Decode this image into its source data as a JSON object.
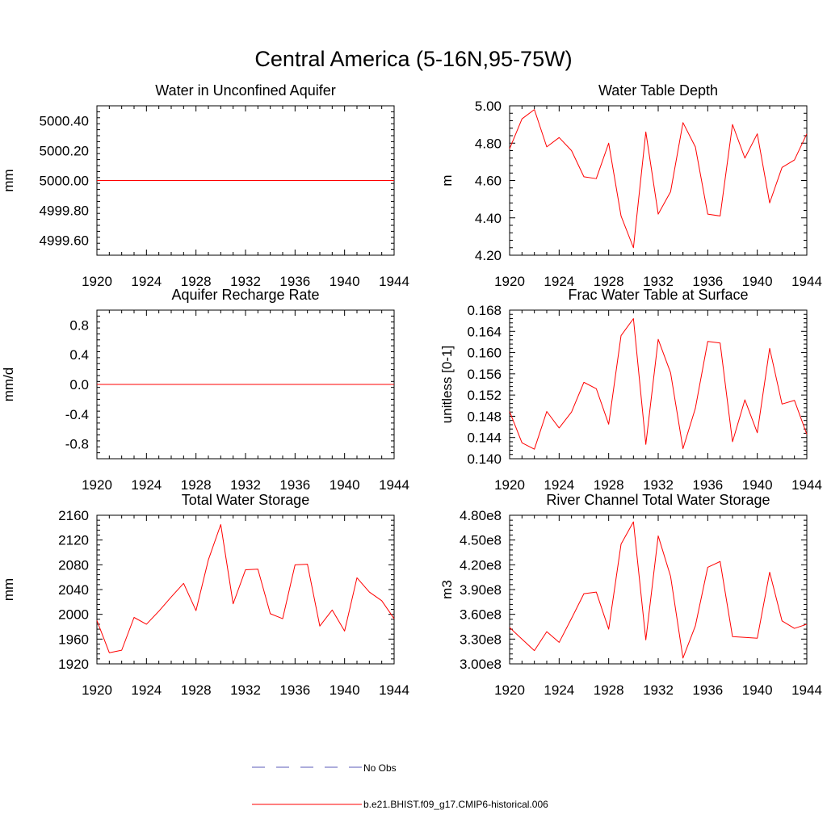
{
  "figure": {
    "title": "Central America (5-16N,95-75W)"
  },
  "colors": {
    "model_line": "#ff0000",
    "obs_line": "#5b5bb8",
    "axis": "#000000"
  },
  "legend": {
    "items": [
      {
        "label": "No Obs",
        "style": "dashed",
        "color": "#5b5bb8"
      },
      {
        "label": "b.e21.BHIST.f09_g17.CMIP6-historical.006",
        "style": "solid",
        "color": "#ff0000"
      }
    ]
  },
  "chart_data": [
    {
      "id": "p1",
      "type": "line",
      "title": "Water in Unconfined Aquifer",
      "xlabel": "",
      "ylabel": "mm",
      "xlim": [
        1920,
        1944
      ],
      "ylim": [
        4999.5,
        5000.5
      ],
      "xticks": [
        1920,
        1924,
        1928,
        1932,
        1936,
        1940,
        1944
      ],
      "xminor": 1,
      "yticks": [
        4999.6,
        4999.8,
        5000.0,
        5000.2,
        5000.4
      ],
      "yminor": 0.04,
      "ydecimals": 2,
      "yformat": "fixed",
      "x": [
        1920,
        1921,
        1922,
        1923,
        1924,
        1925,
        1926,
        1927,
        1928,
        1929,
        1930,
        1931,
        1932,
        1933,
        1934,
        1935,
        1936,
        1937,
        1938,
        1939,
        1940,
        1941,
        1942,
        1943,
        1944
      ],
      "series": [
        {
          "name": "b.e21.BHIST.f09_g17.CMIP6-historical.006",
          "values": [
            5000,
            5000,
            5000,
            5000,
            5000,
            5000,
            5000,
            5000,
            5000,
            5000,
            5000,
            5000,
            5000,
            5000,
            5000,
            5000,
            5000,
            5000,
            5000,
            5000,
            5000,
            5000,
            5000,
            5000,
            5000
          ]
        }
      ]
    },
    {
      "id": "p2",
      "type": "line",
      "title": "Water Table Depth",
      "xlabel": "",
      "ylabel": "m",
      "xlim": [
        1920,
        1944
      ],
      "ylim": [
        4.2,
        5.0
      ],
      "xticks": [
        1920,
        1924,
        1928,
        1932,
        1936,
        1940,
        1944
      ],
      "xminor": 1,
      "yticks": [
        4.2,
        4.4,
        4.6,
        4.8,
        5.0
      ],
      "yminor": 0.04,
      "ydecimals": 2,
      "yformat": "fixed",
      "x": [
        1920,
        1921,
        1922,
        1923,
        1924,
        1925,
        1926,
        1927,
        1928,
        1929,
        1930,
        1931,
        1932,
        1933,
        1934,
        1935,
        1936,
        1937,
        1938,
        1939,
        1940,
        1941,
        1942,
        1943,
        1944
      ],
      "series": [
        {
          "name": "b.e21.BHIST.f09_g17.CMIP6-historical.006",
          "values": [
            4.77,
            4.93,
            4.98,
            4.78,
            4.83,
            4.76,
            4.62,
            4.61,
            4.8,
            4.41,
            4.24,
            4.86,
            4.42,
            4.54,
            4.91,
            4.78,
            4.42,
            4.41,
            4.9,
            4.72,
            4.85,
            4.48,
            4.67,
            4.71,
            4.85
          ]
        }
      ]
    },
    {
      "id": "p3",
      "type": "line",
      "title": "Aquifer Recharge Rate",
      "xlabel": "",
      "ylabel": "mm/d",
      "xlim": [
        1920,
        1944
      ],
      "ylim": [
        -1.0,
        1.0
      ],
      "xticks": [
        1920,
        1924,
        1928,
        1932,
        1936,
        1940,
        1944
      ],
      "xminor": 1,
      "yticks": [
        -0.8,
        -0.4,
        0.0,
        0.4,
        0.8
      ],
      "yminor": 0.08,
      "ydecimals": 1,
      "yformat": "fixed",
      "x": [
        1920,
        1921,
        1922,
        1923,
        1924,
        1925,
        1926,
        1927,
        1928,
        1929,
        1930,
        1931,
        1932,
        1933,
        1934,
        1935,
        1936,
        1937,
        1938,
        1939,
        1940,
        1941,
        1942,
        1943,
        1944
      ],
      "series": [
        {
          "name": "b.e21.BHIST.f09_g17.CMIP6-historical.006",
          "values": [
            0,
            0,
            0,
            0,
            0,
            0,
            0,
            0,
            0,
            0,
            0,
            0,
            0,
            0,
            0,
            0,
            0,
            0,
            0,
            0,
            0,
            0,
            0,
            0,
            0
          ]
        }
      ]
    },
    {
      "id": "p4",
      "type": "line",
      "title": "Frac Water Table at Surface",
      "xlabel": "",
      "ylabel": "unitless [0-1]",
      "xlim": [
        1920,
        1944
      ],
      "ylim": [
        0.14,
        0.168
      ],
      "xticks": [
        1920,
        1924,
        1928,
        1932,
        1936,
        1940,
        1944
      ],
      "xminor": 1,
      "yticks": [
        0.14,
        0.144,
        0.148,
        0.152,
        0.156,
        0.16,
        0.164,
        0.168
      ],
      "yminor": 0.0008,
      "ydecimals": 3,
      "yformat": "fixed",
      "x": [
        1920,
        1921,
        1922,
        1923,
        1924,
        1925,
        1926,
        1927,
        1928,
        1929,
        1930,
        1931,
        1932,
        1933,
        1934,
        1935,
        1936,
        1937,
        1938,
        1939,
        1940,
        1941,
        1942,
        1943,
        1944
      ],
      "series": [
        {
          "name": "b.e21.BHIST.f09_g17.CMIP6-historical.006",
          "values": [
            0.1489,
            0.143,
            0.1418,
            0.1489,
            0.1458,
            0.1488,
            0.1544,
            0.1532,
            0.1465,
            0.1632,
            0.1664,
            0.1427,
            0.1625,
            0.1562,
            0.1419,
            0.1495,
            0.1621,
            0.1618,
            0.1432,
            0.1511,
            0.1449,
            0.1608,
            0.1503,
            0.151,
            0.1446
          ]
        }
      ]
    },
    {
      "id": "p5",
      "type": "line",
      "title": "Total Water Storage",
      "xlabel": "",
      "ylabel": "mm",
      "xlim": [
        1920,
        1944
      ],
      "ylim": [
        1920,
        2160
      ],
      "xticks": [
        1920,
        1924,
        1928,
        1932,
        1936,
        1940,
        1944
      ],
      "xminor": 1,
      "yticks": [
        1920,
        1960,
        2000,
        2040,
        2080,
        2120,
        2160
      ],
      "yminor": 8,
      "ydecimals": 0,
      "yformat": "fixed",
      "x": [
        1920,
        1921,
        1922,
        1923,
        1924,
        1925,
        1926,
        1927,
        1928,
        1929,
        1930,
        1931,
        1932,
        1933,
        1934,
        1935,
        1936,
        1937,
        1938,
        1939,
        1940,
        1941,
        1942,
        1943,
        1944
      ],
      "series": [
        {
          "name": "b.e21.BHIST.f09_g17.CMIP6-historical.006",
          "values": [
            1990,
            1938,
            1942,
            1995,
            1984,
            2005,
            2028,
            2050,
            2006,
            2088,
            2145,
            2017,
            2072,
            2073,
            2001,
            1993,
            2080,
            2081,
            1981,
            2007,
            1973,
            2059,
            2036,
            2022,
            1993
          ]
        }
      ]
    },
    {
      "id": "p6",
      "type": "line",
      "title": "River Channel Total Water Storage",
      "xlabel": "",
      "ylabel": "m3",
      "xlim": [
        1920,
        1944
      ],
      "ylim": [
        300000000,
        480000000
      ],
      "xticks": [
        1920,
        1924,
        1928,
        1932,
        1936,
        1940,
        1944
      ],
      "xminor": 1,
      "yticks": [
        300000000,
        330000000,
        360000000,
        390000000,
        420000000,
        450000000,
        480000000
      ],
      "yminor": 6000000,
      "ydecimals": 2,
      "yformat": "sci8",
      "x": [
        1920,
        1921,
        1922,
        1923,
        1924,
        1925,
        1926,
        1927,
        1928,
        1929,
        1930,
        1931,
        1932,
        1933,
        1934,
        1935,
        1936,
        1937,
        1938,
        1939,
        1940,
        1941,
        1942,
        1943,
        1944
      ],
      "series": [
        {
          "name": "b.e21.BHIST.f09_g17.CMIP6-historical.006",
          "values": [
            344000000,
            330000000,
            316000000,
            339000000,
            326000000,
            355000000,
            385000000,
            387000000,
            342000000,
            445000000,
            472000000,
            329000000,
            455000000,
            406000000,
            307000000,
            346000000,
            417000000,
            424000000,
            333000000,
            332000000,
            331000000,
            411000000,
            352000000,
            343000000,
            348000000
          ]
        }
      ]
    }
  ]
}
